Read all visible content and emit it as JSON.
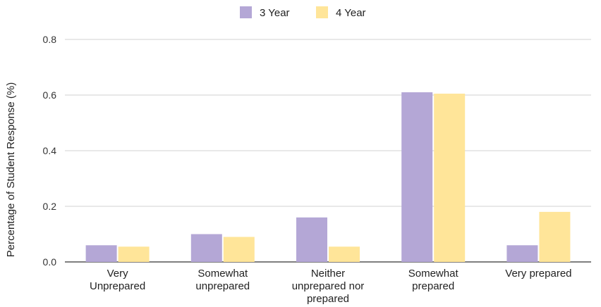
{
  "chart_data": {
    "type": "bar",
    "categories": [
      [
        "Very",
        "Unprepared"
      ],
      [
        "Somewhat",
        "unprepared"
      ],
      [
        "Neither",
        "unprepared nor",
        "prepared"
      ],
      [
        "Somewhat",
        "prepared"
      ],
      [
        "Very prepared"
      ]
    ],
    "series": [
      {
        "name": "3 Year",
        "color": "#b4a7d6",
        "values": [
          0.06,
          0.1,
          0.16,
          0.61,
          0.06
        ]
      },
      {
        "name": "4 Year",
        "color": "#ffe599",
        "values": [
          0.055,
          0.09,
          0.055,
          0.605,
          0.18
        ]
      }
    ],
    "ylabel": "Percentage of Student Response (%)",
    "xlabel": "",
    "ylim": [
      0,
      0.8
    ],
    "yticks": [
      0.0,
      0.2,
      0.4,
      0.6,
      0.8
    ],
    "ytick_labels": [
      "0.0",
      "0.2",
      "0.4",
      "0.6",
      "0.8"
    ],
    "grid": true,
    "legend_position": "top-center"
  }
}
